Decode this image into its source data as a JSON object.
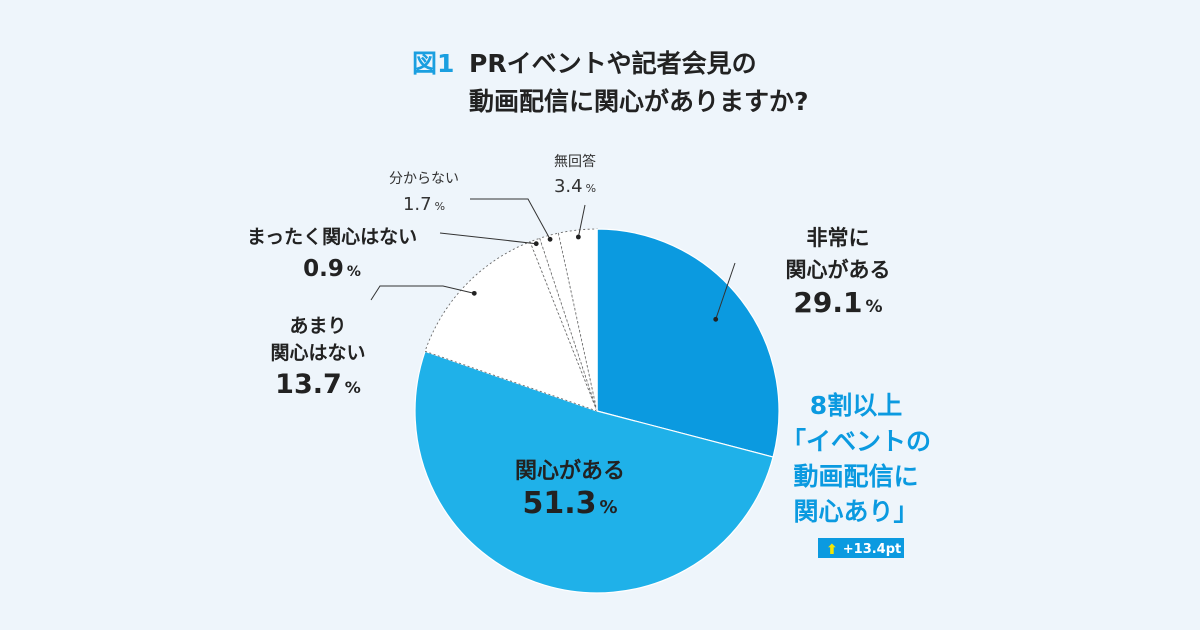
{
  "figure_label": "図1",
  "title_line1": "PRイベントや記者会見の",
  "title_line2": "動画配信に関心がありますか?",
  "chart_data": {
    "type": "pie",
    "title": "PRイベントや記者会見の動画配信に関心がありますか?",
    "unit": "%",
    "slices": [
      {
        "label_lines": [
          "非常に",
          "関心がある"
        ],
        "value": 29.1,
        "color": "#0b9ae0"
      },
      {
        "label_lines": [
          "関心がある"
        ],
        "value": 51.3,
        "color": "#1fb1e9"
      },
      {
        "label_lines": [
          "あまり",
          "関心はない"
        ],
        "value": 13.7,
        "color": "#ffffff"
      },
      {
        "label_lines": [
          "まったく関心はない"
        ],
        "value": 0.9,
        "color": "#ffffff"
      },
      {
        "label_lines": [
          "分からない"
        ],
        "value": 1.7,
        "color": "#ffffff"
      },
      {
        "label_lines": [
          "無回答"
        ],
        "value": 3.4,
        "color": "#ffffff"
      }
    ],
    "colors": {
      "accent": "#0b9ae0",
      "title_accent": "#1a9fe0",
      "text": "#222222",
      "highlight": "#f5e600"
    }
  },
  "callout": {
    "lines": [
      "8割以上",
      "「イベントの",
      "動画配信に",
      "関心あり」"
    ],
    "badge_arrow": "⬆",
    "badge_text": "+13.4pt"
  }
}
